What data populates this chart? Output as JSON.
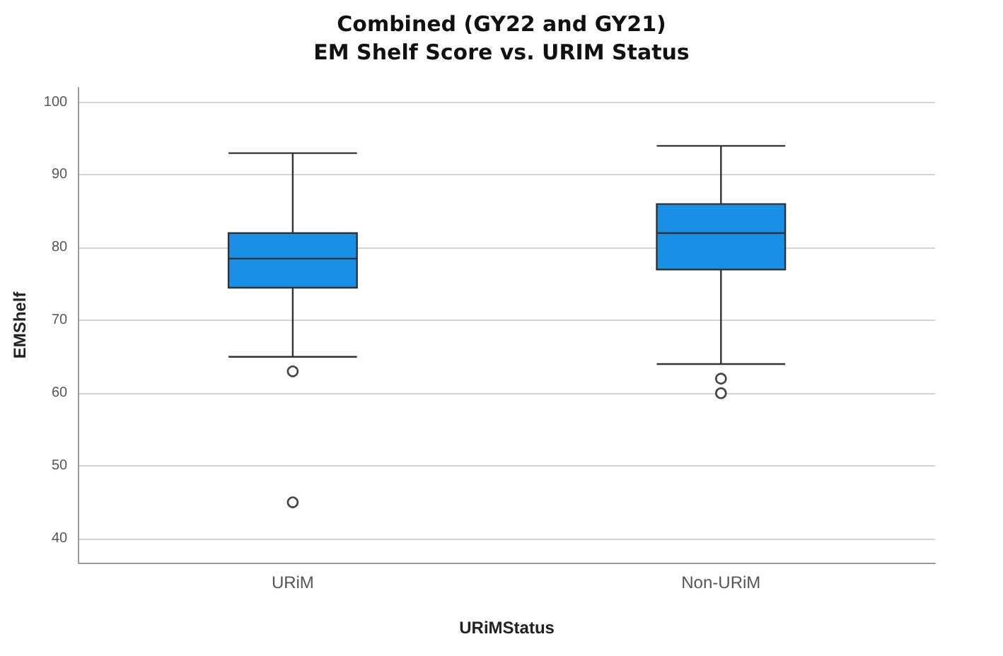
{
  "chart_data": {
    "type": "box",
    "title": "Combined (GY22 and GY21)\nEM Shelf Score vs. URIM Status",
    "xlabel": "URiMStatus",
    "ylabel": "EMShelf",
    "categories": [
      "URiM",
      "Non-URiM"
    ],
    "boxes": [
      {
        "low": 65,
        "q1": 74.5,
        "median": 78.5,
        "q3": 82,
        "high": 93,
        "outliers": [
          63,
          45
        ]
      },
      {
        "low": 64,
        "q1": 77,
        "median": 82,
        "q3": 86,
        "high": 94,
        "outliers": [
          62,
          60
        ]
      }
    ],
    "color": "#1a8fe6",
    "ylim": [
      36.7,
      102
    ],
    "yticks": [
      40,
      50,
      60,
      70,
      80,
      90,
      100
    ],
    "grid": "y"
  }
}
